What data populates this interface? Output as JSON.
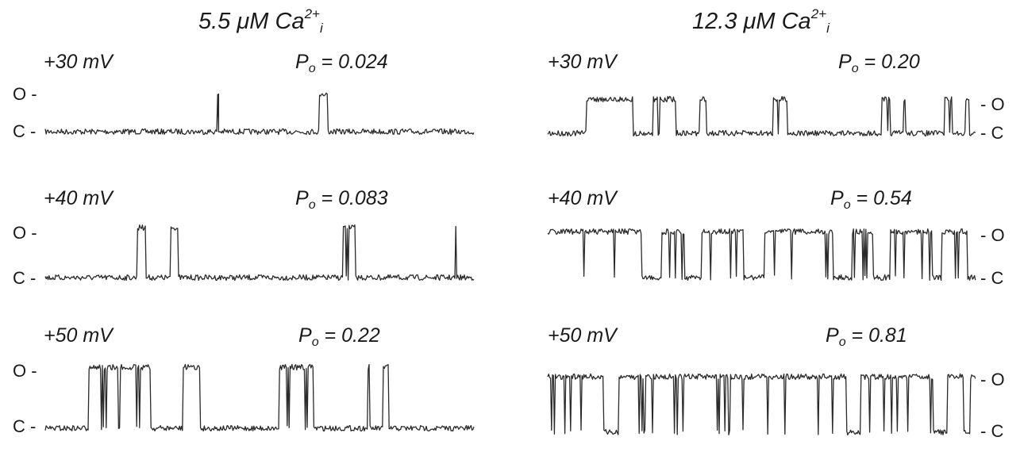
{
  "columns": [
    {
      "title": {
        "prefix": "5.5 ",
        "mu": "μ",
        "unit": "M Ca",
        "sup": "2+",
        "sub": "i"
      },
      "level_side": "left",
      "rows": [
        {
          "voltage": "+30 mV",
          "po_symbol": "P",
          "po_sub": "o",
          "po_value": " = 0.024",
          "open_label": "O -",
          "closed_label": "C -",
          "open_probability": 0.024
        },
        {
          "voltage": "+40 mV",
          "po_symbol": "P",
          "po_sub": "o",
          "po_value": " = 0.083",
          "open_label": "O -",
          "closed_label": "C -",
          "open_probability": 0.083
        },
        {
          "voltage": "+50 mV",
          "po_symbol": "P",
          "po_sub": "o",
          "po_value": " = 0.22",
          "open_label": "O -",
          "closed_label": "C -",
          "open_probability": 0.22
        }
      ]
    },
    {
      "title": {
        "prefix": "12.3 ",
        "mu": "μ",
        "unit": "M Ca",
        "sup": "2+",
        "sub": "i"
      },
      "level_side": "right",
      "rows": [
        {
          "voltage": "+30 mV",
          "po_symbol": "P",
          "po_sub": "o",
          "po_value": " = 0.20",
          "open_label": "- O",
          "closed_label": "- C",
          "open_probability": 0.2
        },
        {
          "voltage": "+40 mV",
          "po_symbol": "P",
          "po_sub": "o",
          "po_value": " = 0.54",
          "open_label": "- O",
          "closed_label": "- C",
          "open_probability": 0.54
        },
        {
          "voltage": "+50 mV",
          "po_symbol": "P",
          "po_sub": "o",
          "po_value": " = 0.81",
          "open_label": "- O",
          "closed_label": "- C",
          "open_probability": 0.81
        }
      ]
    }
  ],
  "colors": {
    "trace": "#2a2a2a",
    "text": "#1a1a1a",
    "background": "#ffffff"
  }
}
